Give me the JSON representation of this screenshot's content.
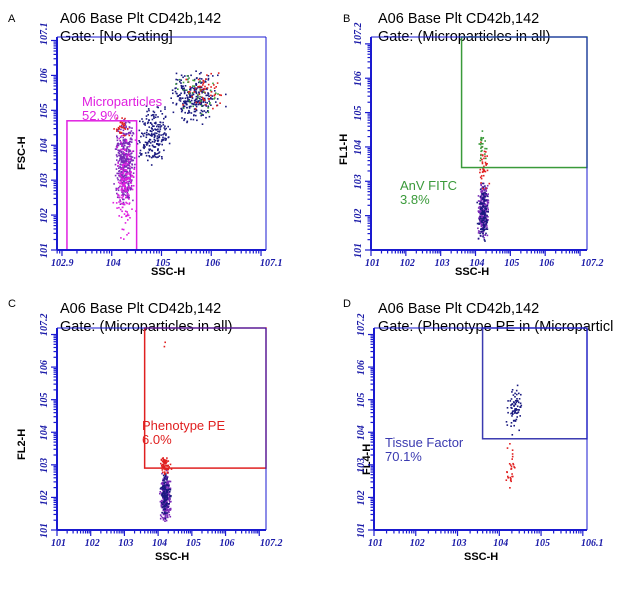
{
  "colors": {
    "axis": "#1a1ad0",
    "magenta": "#e020e0",
    "green": "#3a9a3a",
    "red": "#e02020",
    "navy": "#3a3ab0",
    "dot_blue": "#1a1a80",
    "dot_purple": "#7a2ab8"
  },
  "chart_data": [
    {
      "panel": "A",
      "type": "scatter",
      "title": "A06 Base Plt CD42b,142",
      "subtitle": "Gate: [No Gating]",
      "xlabel": "SSC-H",
      "ylabel": "FSC-H",
      "x_ticks": [
        "10^2.9",
        "10^4",
        "10^5",
        "10^6",
        "10^7.1"
      ],
      "y_ticks": [
        "10^1",
        "10^2",
        "10^3",
        "10^4",
        "10^5",
        "10^6",
        "10^7.1"
      ],
      "xlim_log": [
        2.9,
        7.1
      ],
      "ylim_log": [
        1,
        7.1
      ],
      "scale": "log",
      "gate": {
        "name": "Microparticles",
        "percent": "52.9%",
        "x_log": [
          3.1,
          4.5
        ],
        "y_log": [
          1,
          4.7
        ],
        "color": "magenta",
        "label_display": "Microparticles 52.9%"
      },
      "clusters": [
        {
          "color": "dot_purple",
          "x_log": [
            4.0,
            4.5
          ],
          "y_log": [
            2.3,
            4.8
          ],
          "count": 420
        },
        {
          "color": "magenta",
          "x_log": [
            4.0,
            4.5
          ],
          "y_log": [
            1.3,
            4.4
          ],
          "count": 160
        },
        {
          "color": "dot_blue",
          "x_log": [
            4.4,
            5.3
          ],
          "y_log": [
            3.3,
            5.2
          ],
          "count": 210
        },
        {
          "color": "dot_blue",
          "x_log": [
            5.0,
            6.3
          ],
          "y_log": [
            4.6,
            6.2
          ],
          "count": 260
        },
        {
          "color": "red",
          "x_log": [
            5.3,
            6.4
          ],
          "y_log": [
            5.0,
            6.2
          ],
          "count": 60
        },
        {
          "color": "green",
          "x_log": [
            5.0,
            6.4
          ],
          "y_log": [
            4.8,
            6.3
          ],
          "count": 40
        },
        {
          "color": "red",
          "x_log": [
            4.0,
            4.4
          ],
          "y_log": [
            4.2,
            4.9
          ],
          "count": 30
        }
      ]
    },
    {
      "panel": "B",
      "type": "scatter",
      "title": "A06 Base Plt CD42b,142",
      "subtitle": "Gate: (Microparticles in all)",
      "xlabel": "SSC-H",
      "ylabel": "FL1-H",
      "x_ticks": [
        "10^1",
        "10^2",
        "10^3",
        "10^4",
        "10^5",
        "10^6",
        "10^7.2"
      ],
      "y_ticks": [
        "10^1",
        "10^2",
        "10^3",
        "10^4",
        "10^5",
        "10^6",
        "10^7.2"
      ],
      "xlim_log": [
        1,
        7.2
      ],
      "ylim_log": [
        1,
        7.2
      ],
      "scale": "log",
      "gate": {
        "name": "AnV FITC",
        "percent": "3.8%",
        "x_log": [
          3.6,
          7.2
        ],
        "y_log": [
          3.4,
          7.2
        ],
        "color": "green",
        "label_display": "AnV FITC 3.8%"
      },
      "clusters": [
        {
          "color": "dot_purple",
          "x_log": [
            4.0,
            4.4
          ],
          "y_log": [
            1.3,
            3.0
          ],
          "count": 260
        },
        {
          "color": "dot_blue",
          "x_log": [
            4.0,
            4.4
          ],
          "y_log": [
            1.2,
            3.0
          ],
          "count": 120
        },
        {
          "color": "red",
          "x_log": [
            4.0,
            4.4
          ],
          "y_log": [
            2.6,
            4.2
          ],
          "count": 40
        },
        {
          "color": "green",
          "x_log": [
            4.0,
            4.4
          ],
          "y_log": [
            3.3,
            4.6
          ],
          "count": 25
        }
      ]
    },
    {
      "panel": "C",
      "type": "scatter",
      "title": "A06 Base Plt CD42b,142",
      "subtitle": "Gate: (Microparticles in all)",
      "xlabel": "SSC-H",
      "ylabel": "FL2-H",
      "x_ticks": [
        "10^1",
        "10^2",
        "10^3",
        "10^4",
        "10^5",
        "10^6",
        "10^7.2"
      ],
      "y_ticks": [
        "10^1",
        "10^2",
        "10^3",
        "10^4",
        "10^5",
        "10^6",
        "10^7.2"
      ],
      "xlim_log": [
        1,
        7.2
      ],
      "ylim_log": [
        1,
        7.2
      ],
      "scale": "log",
      "gate": {
        "name": "Phenotype PE",
        "percent": "6.0%",
        "x_log": [
          3.6,
          7.2
        ],
        "y_log": [
          2.9,
          7.2
        ],
        "color": "red",
        "label_display": "Phenotype PE 6.0%"
      },
      "clusters": [
        {
          "color": "dot_purple",
          "x_log": [
            4.0,
            4.4
          ],
          "y_log": [
            1.2,
            2.9
          ],
          "count": 260
        },
        {
          "color": "dot_blue",
          "x_log": [
            4.0,
            4.4
          ],
          "y_log": [
            1.3,
            2.8
          ],
          "count": 120
        },
        {
          "color": "red",
          "x_log": [
            4.0,
            4.4
          ],
          "y_log": [
            2.7,
            3.3
          ],
          "count": 70
        },
        {
          "color": "red",
          "x_log": [
            4.1,
            4.3
          ],
          "y_log": [
            6.6,
            6.9
          ],
          "count": 2
        }
      ]
    },
    {
      "panel": "D",
      "type": "scatter",
      "title": "A06 Base Plt CD42b,142",
      "subtitle": "Gate: (Phenotype PE in (Microparticl",
      "xlabel": "SSC-H",
      "ylabel": "FL4-H",
      "x_ticks": [
        "10^1",
        "10^2",
        "10^3",
        "10^4",
        "10^5",
        "10^6.1"
      ],
      "y_ticks": [
        "10^1",
        "10^2",
        "10^3",
        "10^4",
        "10^5",
        "10^6",
        "10^7.2"
      ],
      "xlim_log": [
        1,
        6.1
      ],
      "ylim_log": [
        1,
        7.2
      ],
      "scale": "log",
      "gate": {
        "name": "Tissue Factor",
        "percent": "70.1%",
        "x_log": [
          3.6,
          6.1
        ],
        "y_log": [
          3.8,
          7.2
        ],
        "color": "navy",
        "label_display": "Tissue Factor 70.1%"
      },
      "clusters": [
        {
          "color": "dot_blue",
          "x_log": [
            4.1,
            4.6
          ],
          "y_log": [
            3.9,
            5.6
          ],
          "count": 75
        },
        {
          "color": "red",
          "x_log": [
            4.1,
            4.4
          ],
          "y_log": [
            1.9,
            3.8
          ],
          "count": 28
        }
      ]
    }
  ]
}
